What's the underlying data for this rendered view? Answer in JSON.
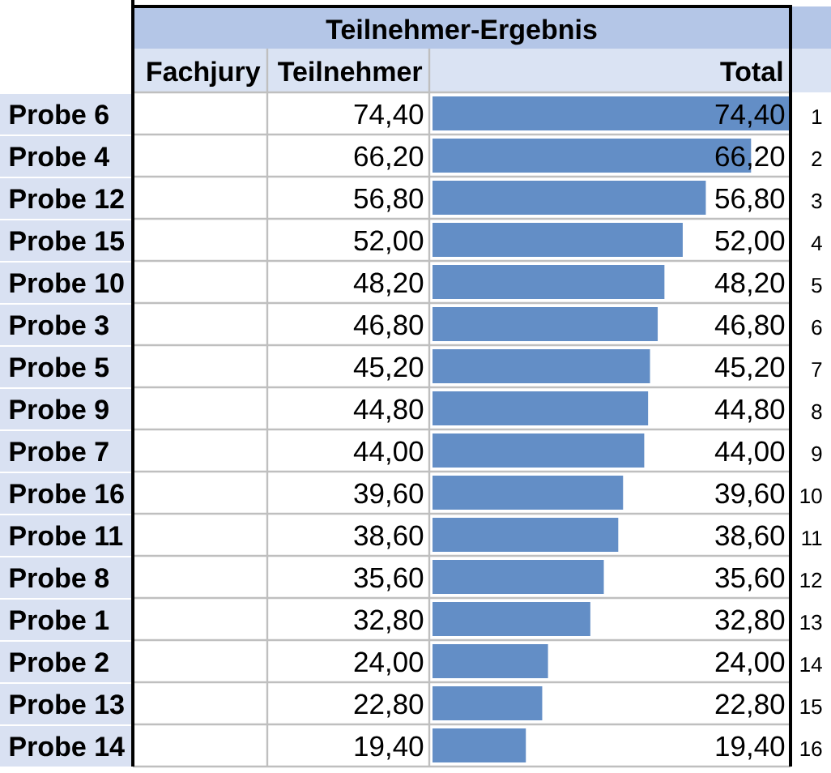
{
  "chart_data": {
    "type": "bar",
    "orientation": "horizontal",
    "title": "Teilnehmer-Ergebnis",
    "xlabel": "Total",
    "categories": [
      "Probe 6",
      "Probe 4",
      "Probe 12",
      "Probe 15",
      "Probe 10",
      "Probe 3",
      "Probe 5",
      "Probe 9",
      "Probe 7",
      "Probe 16",
      "Probe 11",
      "Probe 8",
      "Probe 1",
      "Probe 2",
      "Probe 13",
      "Probe 14"
    ],
    "values": [
      74.4,
      66.2,
      56.8,
      52.0,
      48.2,
      46.8,
      45.2,
      44.8,
      44.0,
      39.6,
      38.6,
      35.6,
      32.8,
      24.0,
      22.8,
      19.4
    ],
    "value_labels": [
      "74,40",
      "66,20",
      "56,80",
      "52,00",
      "48,20",
      "46,80",
      "45,20",
      "44,80",
      "44,00",
      "39,60",
      "38,60",
      "35,60",
      "32,80",
      "24,00",
      "22,80",
      "19,40"
    ],
    "color": "#638ec6",
    "xlim": [
      0,
      74.4
    ],
    "tick_labels": "y",
    "annotations": [
      "Fachjury",
      "Teilnehmer",
      "1",
      "2",
      "3",
      "4",
      "5",
      "6",
      "7",
      "8",
      "9",
      "10",
      "11",
      "12",
      "13",
      "14",
      "15",
      "16"
    ]
  }
}
